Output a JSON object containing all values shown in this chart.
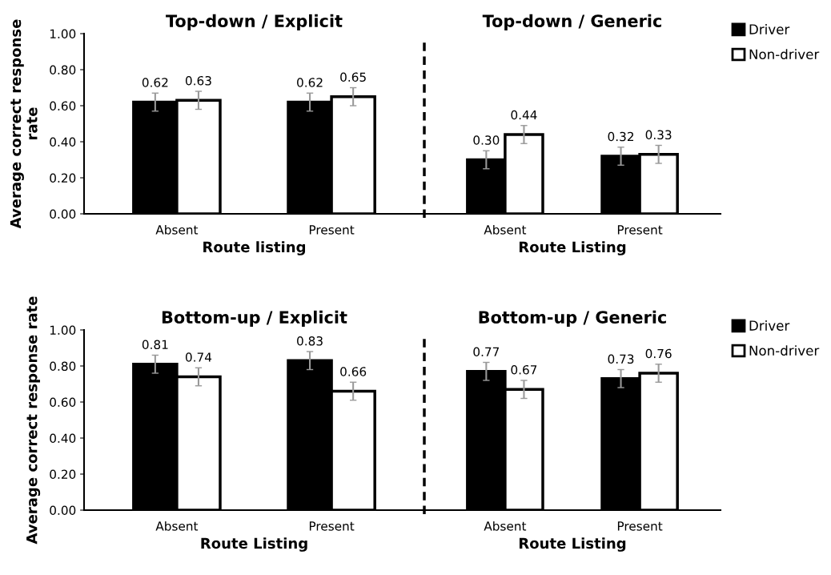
{
  "chart_data": [
    {
      "type": "bar",
      "title": "Top-down / Explicit",
      "xlabel": "Route listing",
      "ylabel": "Average correct response rate",
      "categories": [
        "Absent",
        "Present"
      ],
      "ylim": [
        0,
        1
      ],
      "yticks": [
        {
          "value": 0,
          "label": "0.00"
        },
        {
          "value": 0.2,
          "label": "0.20"
        },
        {
          "value": 0.4,
          "label": "0.40"
        },
        {
          "value": 0.6,
          "label": "0.60"
        },
        {
          "value": 0.8,
          "label": "0.80"
        },
        {
          "value": 1,
          "label": "1.00"
        }
      ],
      "series": [
        {
          "color": "#000000",
          "values": [
            0.62,
            0.62
          ],
          "errors": [
            0.05,
            0.05
          ],
          "value_labels": [
            "0.62",
            "0.62"
          ]
        },
        {
          "color": "#ffffff",
          "values": [
            0.63,
            0.65
          ],
          "errors": [
            0.05,
            0.05
          ],
          "value_labels": [
            "0.63",
            "0.65"
          ]
        }
      ]
    },
    {
      "type": "bar",
      "title": "Top-down / Generic",
      "xlabel": "Route Listing",
      "categories": [
        "Absent",
        "Present"
      ],
      "ylim": [
        0,
        1
      ],
      "tick_labels": "x",
      "legend": "top right",
      "series": [
        {
          "name": "Driver",
          "color": "#000000",
          "values": [
            0.3,
            0.32
          ],
          "errors": [
            0.05,
            0.05
          ],
          "value_labels": [
            "0.30",
            "0.32"
          ]
        },
        {
          "name": "Non-driver",
          "color": "#ffffff",
          "values": [
            0.44,
            0.33
          ],
          "errors": [
            0.05,
            0.05
          ],
          "value_labels": [
            "0.44",
            "0.33"
          ]
        }
      ]
    },
    {
      "type": "bar",
      "title": "Bottom-up / Explicit",
      "xlabel": "Route Listing",
      "ylabel": "Average correct response rate",
      "categories": [
        "Absent",
        "Present"
      ],
      "ylim": [
        0,
        1
      ],
      "yticks": [
        {
          "value": 0,
          "label": "0.00"
        },
        {
          "value": 0.2,
          "label": "0.20"
        },
        {
          "value": 0.4,
          "label": "0.40"
        },
        {
          "value": 0.6,
          "label": "0.60"
        },
        {
          "value": 0.8,
          "label": "0.80"
        },
        {
          "value": 1,
          "label": "1.00"
        }
      ],
      "series": [
        {
          "color": "#000000",
          "values": [
            0.81,
            0.83
          ],
          "errors": [
            0.05,
            0.05
          ],
          "value_labels": [
            "0.81",
            "0.83"
          ]
        },
        {
          "color": "#ffffff",
          "values": [
            0.74,
            0.66
          ],
          "errors": [
            0.05,
            0.05
          ],
          "value_labels": [
            "0.74",
            "0.66"
          ]
        }
      ]
    },
    {
      "type": "bar",
      "title": "Bottom-up / Generic",
      "xlabel": "Route Listing",
      "categories": [
        "Absent",
        "Present"
      ],
      "ylim": [
        0,
        1
      ],
      "tick_labels": "x",
      "legend": "top right",
      "series": [
        {
          "name": "Driver",
          "color": "#000000",
          "values": [
            0.77,
            0.73
          ],
          "errors": [
            0.05,
            0.05
          ],
          "value_labels": [
            "0.77",
            "0.73"
          ]
        },
        {
          "name": "Non-driver",
          "color": "#ffffff",
          "values": [
            0.67,
            0.76
          ],
          "errors": [
            0.05,
            0.05
          ],
          "value_labels": [
            "0.67",
            "0.76"
          ]
        }
      ]
    }
  ]
}
